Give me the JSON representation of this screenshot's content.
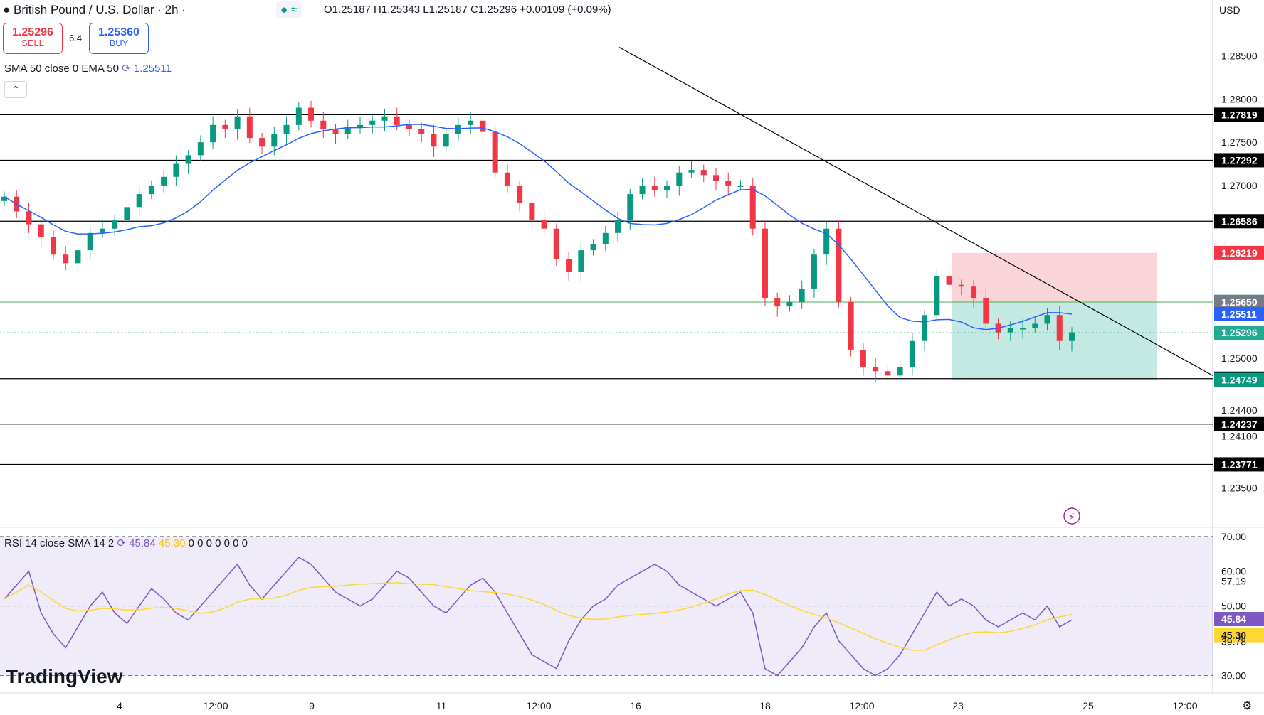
{
  "header": {
    "title": "British Pound / U.S. Dollar · 2h ·",
    "ohlc": "O1.25187  H1.25343  L1.25187  C1.25296  +0.00109 (+0.09%)",
    "sell_price": "1.25296",
    "sell_label": "SELL",
    "spread": "6.4",
    "buy_price": "1.25360",
    "buy_label": "BUY",
    "currency": "USD",
    "sma_label": "SMA 50 close 0 EMA 50",
    "sma_value": "1.25511",
    "rsi_label": "RSI 14 close SMA 14 2",
    "rsi_value": "45.84",
    "rsi_sma_value": "45.30",
    "rsi_zeros": "0 0 0 0 0 0 0",
    "logo": "TradingView",
    "collapse_icon": "chevron-up-icon"
  },
  "chart_data": [
    {
      "type": "candlestick",
      "title": "British Pound / U.S. Dollar · 2h",
      "x_tick_labels": [
        "4",
        "12:00",
        "9",
        "11",
        "12:00",
        "16",
        "18",
        "12:00",
        "23",
        "25",
        "12:00"
      ],
      "y_tick_labels": [
        "1.28500",
        "1.28000",
        "1.27500",
        "1.27000",
        "1.25000",
        "1.24400",
        "1.24100",
        "1.23500"
      ],
      "ylim": [
        1.231,
        1.289
      ],
      "grid": false,
      "close_path": [
        1.2687,
        1.267,
        1.2655,
        1.264,
        1.262,
        1.261,
        1.2625,
        1.2645,
        1.265,
        1.266,
        1.2675,
        1.269,
        1.27,
        1.271,
        1.2725,
        1.2735,
        1.275,
        1.277,
        1.2765,
        1.278,
        1.2755,
        1.2745,
        1.276,
        1.277,
        1.279,
        1.2775,
        1.2765,
        1.276,
        1.2768,
        1.277,
        1.2775,
        1.278,
        1.277,
        1.2765,
        1.276,
        1.2745,
        1.276,
        1.277,
        1.2775,
        1.2762,
        1.2715,
        1.27,
        1.268,
        1.266,
        1.265,
        1.2615,
        1.26,
        1.2625,
        1.2632,
        1.2645,
        1.266,
        1.269,
        1.27,
        1.2695,
        1.27,
        1.2715,
        1.2718,
        1.2712,
        1.2705,
        1.27,
        1.27,
        1.265,
        1.257,
        1.256,
        1.2565,
        1.258,
        1.262,
        1.265,
        1.2565,
        1.251,
        1.249,
        1.2485,
        1.248,
        1.249,
        1.252,
        1.255,
        1.2595,
        1.2585,
        1.2583,
        1.257,
        1.254,
        1.253,
        1.2535,
        1.2535,
        1.254,
        1.255,
        1.252,
        1.253
      ],
      "horizontal_levels": [
        1.27819,
        1.27292,
        1.26586,
        1.24764,
        1.24237,
        1.23771
      ],
      "entry_line": 1.2565,
      "price_line": 1.25296,
      "price_labels": [
        {
          "value": 1.27819,
          "label": "1.27819",
          "color": "#000000"
        },
        {
          "value": 1.27292,
          "label": "1.27292",
          "color": "#000000"
        },
        {
          "value": 1.26586,
          "label": "1.26586",
          "color": "#000000"
        },
        {
          "value": 1.26219,
          "label": "1.26219",
          "color": "#f23645"
        },
        {
          "value": 1.25653,
          "label": "1.25653",
          "color": "#22ab94"
        },
        {
          "value": 1.2565,
          "label": "1.25650",
          "color": "#787b86"
        },
        {
          "value": 1.25511,
          "label": "1.25511",
          "color": "#2962ff"
        },
        {
          "value": 1.25296,
          "label": "1.25296",
          "color": "#22ab94"
        },
        {
          "value": 1.24764,
          "label": "1.24764",
          "color": "#000000"
        },
        {
          "value": 1.24749,
          "label": "1.24749",
          "color": "#089981"
        },
        {
          "value": 1.24237,
          "label": "1.24237",
          "color": "#000000"
        },
        {
          "value": 1.23771,
          "label": "1.23771",
          "color": "#000000"
        }
      ],
      "position_tool": {
        "entry": 1.2565,
        "stop": 1.26219,
        "target": 1.24749,
        "loss_color": "#f7c9cf",
        "profit_color": "#9cd9ce"
      },
      "trendline": [
        [
          1.286,
          0.45
        ],
        [
          1.248,
          0.97
        ]
      ],
      "colors": {
        "up": "#089981",
        "down": "#f23645",
        "sma": "#2962ff"
      }
    },
    {
      "type": "line",
      "title": "RSI 14 close SMA 14 2",
      "y_tick_labels": [
        "70.00",
        "60.00",
        "57.19",
        "50.00",
        "45.84",
        "45.30",
        "39.78",
        "30.00"
      ],
      "ylim": [
        25,
        72
      ],
      "bands": [
        30,
        50,
        70
      ],
      "series": [
        {
          "name": "RSI",
          "color": "#7e57c2",
          "last": 45.84
        },
        {
          "name": "SMA",
          "color": "#fdd835",
          "last": 45.3
        }
      ],
      "rsi_values": [
        52,
        56,
        60,
        48,
        42,
        38,
        44,
        50,
        54,
        48,
        45,
        50,
        55,
        52,
        48,
        46,
        50,
        54,
        58,
        62,
        56,
        52,
        56,
        60,
        64,
        62,
        58,
        54,
        52,
        50,
        52,
        56,
        60,
        58,
        54,
        50,
        48,
        52,
        56,
        58,
        54,
        48,
        42,
        36,
        34,
        32,
        40,
        46,
        50,
        52,
        56,
        58,
        60,
        62,
        60,
        56,
        54,
        52,
        50,
        52,
        54,
        48,
        32,
        30,
        34,
        38,
        44,
        48,
        40,
        36,
        32,
        30,
        32,
        36,
        42,
        48,
        54,
        50,
        52,
        50,
        46,
        44,
        46,
        48,
        46,
        50,
        44,
        46
      ]
    }
  ]
}
